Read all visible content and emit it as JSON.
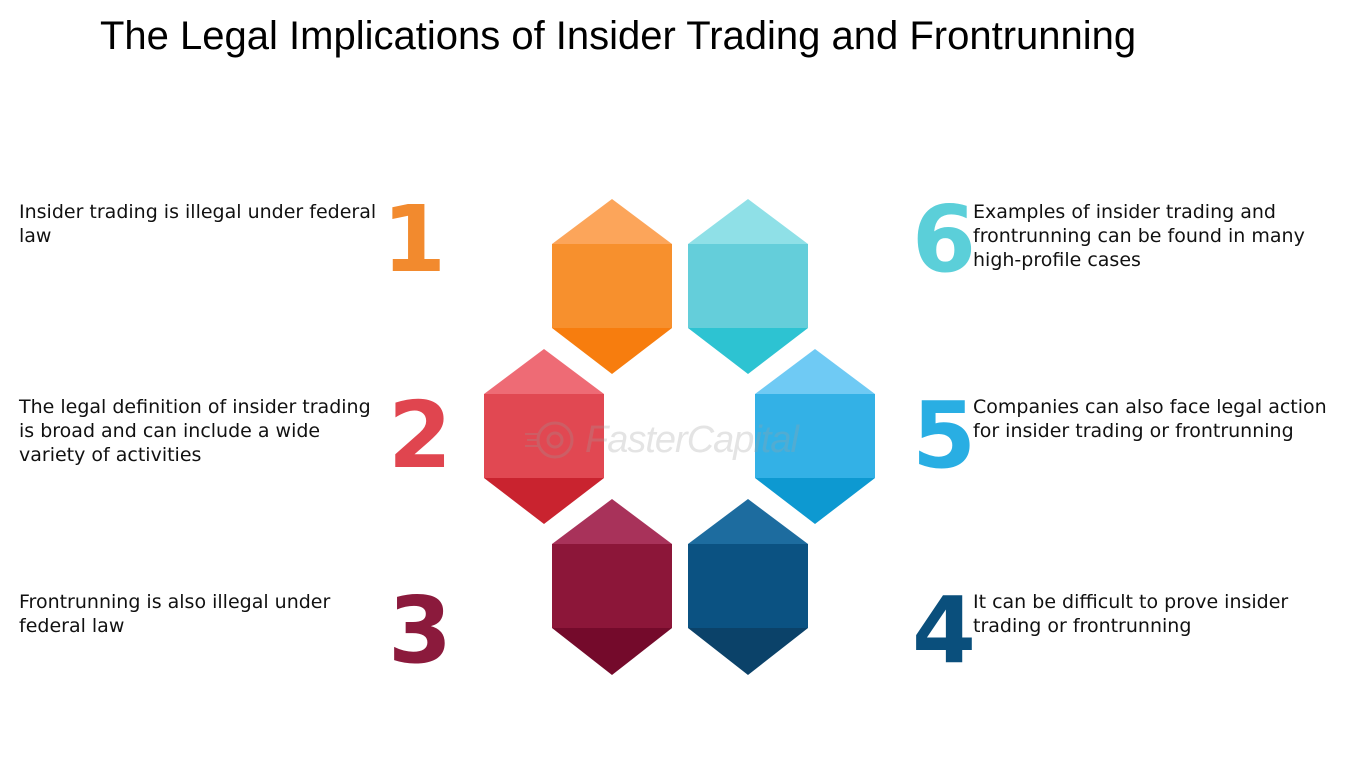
{
  "title": "The Legal Implications of Insider Trading and Frontrunning",
  "watermark": "FasterCapital",
  "points": [
    {
      "number": "1",
      "text": "Insider trading is illegal under federal law",
      "color": "#f28a2e"
    },
    {
      "number": "2",
      "text": "The legal definition of insider trading is broad and can include a wide variety of activities",
      "color": "#e0454f"
    },
    {
      "number": "3",
      "text": "Frontrunning is also illegal under federal law",
      "color": "#8b1a3c"
    },
    {
      "number": "4",
      "text": "It can be difficult to prove insider trading or frontrunning",
      "color": "#0a4f7c"
    },
    {
      "number": "5",
      "text": "Companies can also face legal action for insider trading or frontrunning",
      "color": "#29aee3"
    },
    {
      "number": "6",
      "text": "Examples of insider trading and frontrunning can be found in many high-profile cases",
      "color": "#5bcfd9"
    }
  ],
  "hexagons": [
    {
      "top": "#fca55a",
      "mid": "#f7902d",
      "bottom": "#f77d0e"
    },
    {
      "top": "#ee6b75",
      "mid": "#e14852",
      "bottom": "#c9232f"
    },
    {
      "top": "#a8325a",
      "mid": "#8c1639",
      "bottom": "#740a2b"
    },
    {
      "top": "#1d6c9f",
      "mid": "#0b5282",
      "bottom": "#0b4269"
    },
    {
      "top": "#6fcaf4",
      "mid": "#33b1e6",
      "bottom": "#0d99d1"
    },
    {
      "top": "#8fe0e7",
      "mid": "#64ceda",
      "bottom": "#2dc3d2"
    }
  ]
}
